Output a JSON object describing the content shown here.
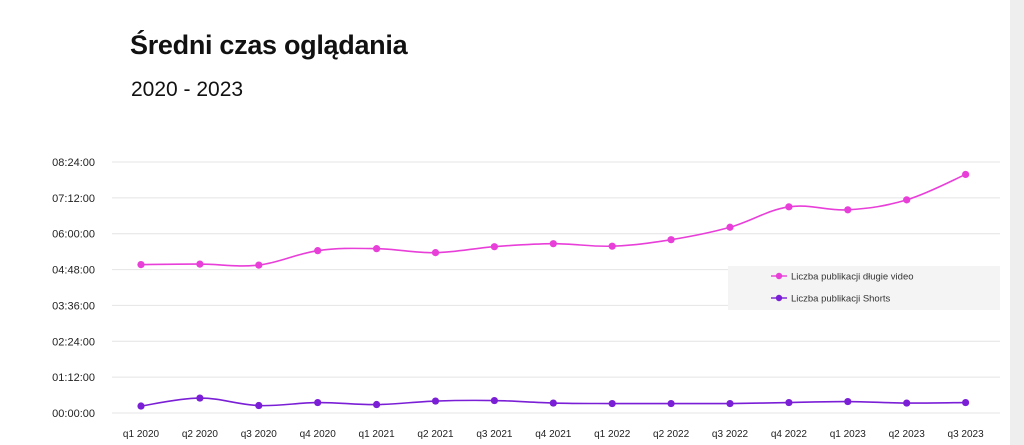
{
  "title": "Średni czas oglądania",
  "subtitle": "2020 - 2023",
  "colors": {
    "long_video": "#e83fd9",
    "shorts": "#7b1fd6",
    "grid": "#e4e4e4",
    "legend_bg": "#f4f4f4"
  },
  "chart_data": {
    "type": "line",
    "title": "Średni czas oglądania",
    "subtitle": "2020 - 2023",
    "xlabel": "",
    "ylabel": "",
    "categories": [
      "q1 2020",
      "q2 2020",
      "q3 2020",
      "q4 2020",
      "q1 2021",
      "q2 2021",
      "q3 2021",
      "q4 2021",
      "q1 2022",
      "q2 2022",
      "q3 2022",
      "q4 2022",
      "q1 2023",
      "q2 2023",
      "q3 2023"
    ],
    "y_unit": "minutes",
    "yticks": [
      "00:00:00",
      "01:12:00",
      "02:24:00",
      "03:36:00",
      "04:48:00",
      "06:00:00",
      "07:12:00",
      "08:24:00"
    ],
    "ylim": [
      0,
      504
    ],
    "grid": true,
    "legend_position": "right",
    "series": [
      {
        "name": "Liczba publikacji długie video",
        "color": "#e83fd9",
        "values": [
          298,
          299,
          297,
          326,
          330,
          322,
          334,
          340,
          335,
          348,
          373,
          414,
          408,
          428,
          479
        ]
      },
      {
        "name": "Liczba publikacji Shorts",
        "color": "#7b1fd6",
        "values": [
          14,
          30,
          15,
          21,
          17,
          24,
          25,
          20,
          19,
          19,
          19,
          21,
          23,
          20,
          21
        ]
      }
    ]
  }
}
